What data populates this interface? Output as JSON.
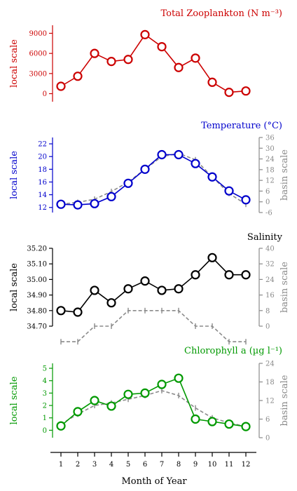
{
  "xaxis": {
    "label": "Month of Year",
    "ticks": [
      "1",
      "2",
      "3",
      "4",
      "5",
      "6",
      "7",
      "8",
      "9",
      "10",
      "11",
      "12"
    ]
  },
  "chart_data": [
    {
      "type": "line",
      "title": "Total Zooplankton (N m⁻³)",
      "ylabel": "local scale",
      "y2label": "",
      "color": "#cc0000",
      "ylim": [
        -1200,
        10200
      ],
      "yticks": [
        0,
        3000,
        6000,
        9000
      ],
      "ytick_labels": [
        "0",
        "3000",
        "6000",
        "9000"
      ],
      "y2lim": null,
      "y2ticks": [],
      "y2tick_labels": [],
      "x": [
        1,
        2,
        3,
        4,
        5,
        6,
        7,
        8,
        9,
        10,
        11,
        12
      ],
      "series": [
        {
          "values": [
            1100,
            2600,
            6000,
            4800,
            5100,
            8800,
            7000,
            3900,
            5300,
            1700,
            200,
            400
          ]
        }
      ],
      "basin": []
    },
    {
      "type": "line",
      "title": "Temperature (°C)",
      "ylabel": "local scale",
      "y2label": "basin scale",
      "color": "#0000cc",
      "ylim": [
        11.2,
        23.0
      ],
      "yticks": [
        12,
        14,
        16,
        18,
        20,
        22
      ],
      "ytick_labels": [
        "12",
        "14",
        "16",
        "18",
        "20",
        "22"
      ],
      "y2lim": [
        -6,
        36
      ],
      "y2ticks": [
        -6,
        0,
        6,
        12,
        18,
        24,
        30,
        36
      ],
      "y2tick_labels": [
        "-6",
        "0",
        "6",
        "12",
        "18",
        "24",
        "30",
        "36"
      ],
      "x": [
        1,
        2,
        3,
        4,
        5,
        6,
        7,
        8,
        9,
        10,
        11,
        12
      ],
      "series": [
        {
          "values": [
            12.5,
            12.4,
            12.6,
            13.7,
            15.8,
            18.0,
            20.3,
            20.3,
            18.9,
            16.8,
            14.6,
            13.2
          ]
        }
      ],
      "basin": [
        12.5,
        12.8,
        13.3,
        14.5,
        16.0,
        18.0,
        20.0,
        20.5,
        19.5,
        16.8,
        14.2,
        12.5
      ]
    },
    {
      "type": "line",
      "title": "Salinity",
      "ylabel": "local scale",
      "y2label": "basin scale",
      "color": "#000000",
      "ylim": [
        34.7,
        35.2
      ],
      "yticks": [
        34.7,
        34.8,
        34.9,
        35.0,
        35.1,
        35.2
      ],
      "ytick_labels": [
        "34.70",
        "34.80",
        "34.90",
        "35.00",
        "35.10",
        "35.20"
      ],
      "y2lim": [
        0,
        40
      ],
      "y2ticks": [
        0,
        8,
        16,
        24,
        32,
        40
      ],
      "y2tick_labels": [
        "0",
        "8",
        "16",
        "24",
        "32",
        "40"
      ],
      "x": [
        1,
        2,
        3,
        4,
        5,
        6,
        7,
        8,
        9,
        10,
        11,
        12
      ],
      "series": [
        {
          "values": [
            34.8,
            34.79,
            34.93,
            34.85,
            34.94,
            34.99,
            34.93,
            34.94,
            35.03,
            35.14,
            35.03,
            35.03
          ]
        }
      ],
      "basin": [
        34.6,
        34.6,
        34.7,
        34.7,
        34.8,
        34.8,
        34.8,
        34.8,
        34.7,
        34.7,
        34.6,
        34.6
      ]
    },
    {
      "type": "line",
      "title": "Chlorophyll a (µg l⁻¹)",
      "ylabel": "local scale",
      "y2label": "basin scale",
      "color": "#009900",
      "ylim": [
        -0.6,
        5.4
      ],
      "yticks": [
        0,
        1,
        2,
        3,
        4,
        5
      ],
      "ytick_labels": [
        "0",
        "1",
        "2",
        "3",
        "4",
        "5"
      ],
      "y2lim": [
        0,
        24
      ],
      "y2ticks": [
        0,
        6,
        12,
        18,
        24
      ],
      "y2tick_labels": [
        "0",
        "6",
        "12",
        "18",
        "24"
      ],
      "x": [
        1,
        2,
        3,
        4,
        5,
        6,
        7,
        8,
        9,
        10,
        11,
        12
      ],
      "series": [
        {
          "values": [
            0.35,
            1.5,
            2.4,
            1.95,
            2.9,
            3.0,
            3.7,
            4.2,
            0.9,
            0.7,
            0.5,
            0.3
          ]
        }
      ],
      "basin": [
        0.5,
        1.3,
        2.0,
        2.2,
        2.5,
        2.8,
        3.2,
        2.8,
        1.8,
        1.0,
        0.6,
        0.3
      ]
    }
  ]
}
